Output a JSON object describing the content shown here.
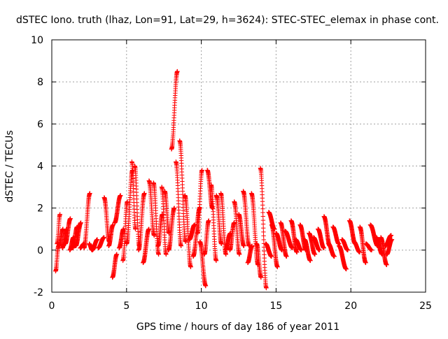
{
  "chart_data": {
    "type": "scatter",
    "title": "dSTEC Iono. truth (lhaz, Lon=91, Lat=29, h=3624): STEC-STEC_elemax in phase cont.",
    "xlabel": "GPS time / hours of day 186 of year 2011",
    "ylabel": "dSTEC  / TECUs",
    "xlim": [
      0,
      25
    ],
    "ylim": [
      -2,
      10
    ],
    "x_ticks": [
      0,
      5,
      10,
      15,
      20,
      25
    ],
    "y_ticks": [
      -2,
      0,
      2,
      4,
      6,
      8,
      10
    ],
    "x_tick_labels": [
      "0",
      "5",
      "10",
      "15",
      "20",
      "25"
    ],
    "y_tick_labels": [
      "-2",
      "0",
      "2",
      "4",
      "6",
      "8",
      "10"
    ],
    "grid": true,
    "marker": "plus",
    "colors": {
      "series": "#ff0000",
      "grid": "#a0a0a0",
      "axis": "#000000"
    },
    "series": [
      {
        "arcs": [
          {
            "start": 0.25,
            "end": 0.45,
            "from": -1.0,
            "to": 0.2
          },
          {
            "start": 0.35,
            "end": 0.55,
            "from": 0.3,
            "to": 1.7
          },
          {
            "start": 0.5,
            "end": 0.75,
            "from": 0.2,
            "to": 1.0
          },
          {
            "start": 0.7,
            "end": 1.0,
            "from": 0.1,
            "to": 1.0
          },
          {
            "start": 0.9,
            "end": 1.25,
            "from": 0.3,
            "to": 1.5
          },
          {
            "start": 1.2,
            "end": 1.45,
            "from": 0.0,
            "to": 0.6
          },
          {
            "start": 1.4,
            "end": 1.7,
            "from": 0.1,
            "to": 1.1
          },
          {
            "start": 1.6,
            "end": 1.95,
            "from": 0.2,
            "to": 1.3
          },
          {
            "start": 1.9,
            "end": 2.15,
            "from": 0.1,
            "to": 0.3
          },
          {
            "start": 2.15,
            "end": 2.55,
            "from": 0.1,
            "to": 2.7
          },
          {
            "start": 2.5,
            "end": 2.7,
            "from": 0.3,
            "to": 0.0
          },
          {
            "start": 2.7,
            "end": 3.05,
            "from": 0.0,
            "to": 0.5
          },
          {
            "start": 3.1,
            "end": 3.5,
            "from": 0.1,
            "to": 0.6
          },
          {
            "start": 3.5,
            "end": 3.85,
            "from": 2.5,
            "to": 0.4
          },
          {
            "start": 3.8,
            "end": 4.1,
            "from": 0.2,
            "to": 1.2
          },
          {
            "start": 4.05,
            "end": 4.35,
            "from": -1.3,
            "to": -0.2
          },
          {
            "start": 4.2,
            "end": 4.6,
            "from": 1.3,
            "to": 2.6
          },
          {
            "start": 4.5,
            "end": 4.8,
            "from": 0.1,
            "to": 1.0
          },
          {
            "start": 4.75,
            "end": 5.05,
            "from": -0.5,
            "to": 2.3
          },
          {
            "start": 5.0,
            "end": 5.4,
            "from": 0.3,
            "to": 3.8
          },
          {
            "start": 5.35,
            "end": 5.6,
            "from": 4.2,
            "to": 1.0
          },
          {
            "start": 5.55,
            "end": 5.85,
            "from": 4.0,
            "to": 0.2
          },
          {
            "start": 5.8,
            "end": 6.2,
            "from": 0.0,
            "to": 2.7
          },
          {
            "start": 6.1,
            "end": 6.5,
            "from": -0.6,
            "to": 1.0
          },
          {
            "start": 6.5,
            "end": 6.85,
            "from": 3.3,
            "to": 0.7
          },
          {
            "start": 6.8,
            "end": 7.15,
            "from": 3.2,
            "to": -0.2
          },
          {
            "start": 7.1,
            "end": 7.4,
            "from": 0.2,
            "to": 1.7
          },
          {
            "start": 7.35,
            "end": 7.65,
            "from": 3.0,
            "to": -0.2
          },
          {
            "start": 7.55,
            "end": 7.85,
            "from": 2.8,
            "to": 0.8
          },
          {
            "start": 7.8,
            "end": 8.2,
            "from": 0.0,
            "to": 2.0
          },
          {
            "start": 8.0,
            "end": 8.4,
            "from": 4.8,
            "to": 8.5
          },
          {
            "start": 8.3,
            "end": 8.65,
            "from": 4.2,
            "to": 0.2
          },
          {
            "start": 8.55,
            "end": 8.95,
            "from": 5.2,
            "to": 0.4
          },
          {
            "start": 8.9,
            "end": 9.3,
            "from": 2.6,
            "to": -0.8
          },
          {
            "start": 9.2,
            "end": 9.55,
            "from": 0.5,
            "to": 1.2
          },
          {
            "start": 9.45,
            "end": 9.9,
            "from": -0.3,
            "to": 2.0
          },
          {
            "start": 9.75,
            "end": 10.05,
            "from": 0.8,
            "to": 3.8
          },
          {
            "start": 9.9,
            "end": 10.3,
            "from": 0.4,
            "to": -1.7
          },
          {
            "start": 10.2,
            "end": 10.5,
            "from": -0.2,
            "to": 1.4
          },
          {
            "start": 10.4,
            "end": 10.75,
            "from": 3.8,
            "to": 2.0
          },
          {
            "start": 10.65,
            "end": 11.0,
            "from": 3.1,
            "to": -0.5
          },
          {
            "start": 11.0,
            "end": 11.35,
            "from": 2.6,
            "to": 0.3
          },
          {
            "start": 11.3,
            "end": 11.65,
            "from": 2.7,
            "to": -0.2
          },
          {
            "start": 11.6,
            "end": 11.95,
            "from": 0.0,
            "to": 0.8
          },
          {
            "start": 11.9,
            "end": 12.2,
            "from": 0.0,
            "to": 1.3
          },
          {
            "start": 12.2,
            "end": 12.55,
            "from": 2.3,
            "to": -0.2
          },
          {
            "start": 12.5,
            "end": 12.85,
            "from": 1.7,
            "to": 0.2
          },
          {
            "start": 12.8,
            "end": 13.2,
            "from": 2.8,
            "to": 0.2
          },
          {
            "start": 13.1,
            "end": 13.4,
            "from": -0.6,
            "to": 0.2
          },
          {
            "start": 13.35,
            "end": 13.8,
            "from": 2.7,
            "to": -0.7
          },
          {
            "start": 13.7,
            "end": 14.0,
            "from": 0.3,
            "to": -1.3
          },
          {
            "start": 13.95,
            "end": 14.35,
            "from": 3.9,
            "to": -1.8
          },
          {
            "start": 14.3,
            "end": 14.7,
            "from": 0.3,
            "to": -0.3
          },
          {
            "start": 14.5,
            "end": 14.9,
            "from": 1.8,
            "to": 1.0
          },
          {
            "start": 14.7,
            "end": 15.1,
            "from": 1.2,
            "to": -0.8
          },
          {
            "start": 15.0,
            "end": 15.4,
            "from": 0.8,
            "to": 0.0
          },
          {
            "start": 15.3,
            "end": 15.7,
            "from": 1.3,
            "to": -0.3
          },
          {
            "start": 15.6,
            "end": 16.1,
            "from": 0.9,
            "to": 0.1
          },
          {
            "start": 16.0,
            "end": 16.4,
            "from": 1.4,
            "to": -0.1
          },
          {
            "start": 16.3,
            "end": 16.7,
            "from": 0.5,
            "to": 0.0
          },
          {
            "start": 16.6,
            "end": 17.0,
            "from": 1.2,
            "to": 0.0
          },
          {
            "start": 16.9,
            "end": 17.3,
            "from": 0.5,
            "to": -0.5
          },
          {
            "start": 17.2,
            "end": 17.6,
            "from": 0.8,
            "to": -0.2
          },
          {
            "start": 17.5,
            "end": 17.9,
            "from": 0.6,
            "to": 0.0
          },
          {
            "start": 17.8,
            "end": 18.2,
            "from": 1.0,
            "to": 0.1
          },
          {
            "start": 18.2,
            "end": 18.6,
            "from": 1.6,
            "to": 0.2
          },
          {
            "start": 18.5,
            "end": 18.9,
            "from": 0.3,
            "to": -0.3
          },
          {
            "start": 18.8,
            "end": 19.2,
            "from": 1.1,
            "to": 0.3
          },
          {
            "start": 19.2,
            "end": 19.7,
            "from": 0.2,
            "to": -0.9
          },
          {
            "start": 19.4,
            "end": 19.8,
            "from": 0.5,
            "to": 0.0
          },
          {
            "start": 19.9,
            "end": 20.3,
            "from": 1.4,
            "to": 0.3
          },
          {
            "start": 20.2,
            "end": 20.6,
            "from": 0.4,
            "to": -0.1
          },
          {
            "start": 20.6,
            "end": 21.0,
            "from": 1.1,
            "to": -0.6
          },
          {
            "start": 21.0,
            "end": 21.4,
            "from": 0.3,
            "to": 0.0
          },
          {
            "start": 21.3,
            "end": 21.8,
            "from": 1.2,
            "to": 0.2
          },
          {
            "start": 21.7,
            "end": 22.1,
            "from": 0.6,
            "to": -0.2
          },
          {
            "start": 22.0,
            "end": 22.4,
            "from": 0.6,
            "to": -0.7
          },
          {
            "start": 22.3,
            "end": 22.7,
            "from": 0.2,
            "to": 0.7
          },
          {
            "start": 22.4,
            "end": 22.75,
            "from": -0.2,
            "to": 0.5
          }
        ]
      }
    ]
  }
}
